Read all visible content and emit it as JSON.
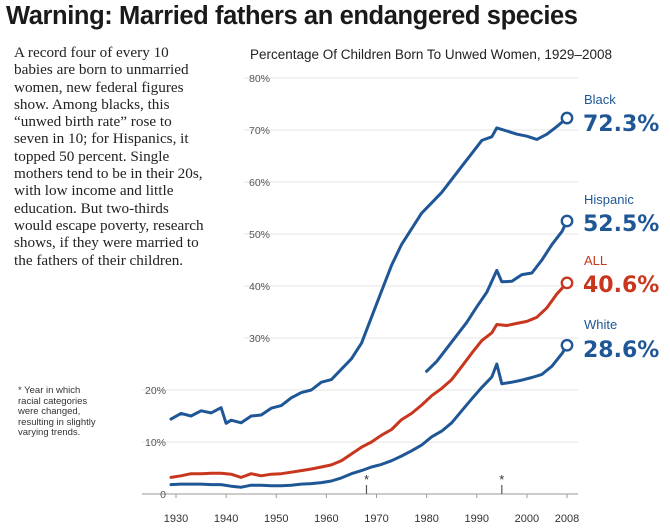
{
  "headline": "Warning: Married fathers an endangered species",
  "body_text": "A record four of every 10 babies are born to unmarried women, new federal figures show. Among blacks, this “unwed birth rate” rose to seven in 10; for Hispanics, it topped 50 percent. Single mothers tend to be in their 20s, with low income and little education. But two-thirds would escape poverty, research shows, if they were married to the fathers of their children.",
  "footnote": "* Year in which racial categories were changed, resulting in slightly varying trends.",
  "colors": {
    "black": "#1f5796",
    "hispanic": "#1f5796",
    "all": "#c8361e",
    "white": "#1f5796"
  },
  "chart_data": {
    "type": "line",
    "title": "Percentage Of Children Born To Unwed Women, 1929–2008",
    "xlabel": "",
    "ylabel": "",
    "xlim": [
      1929,
      2008
    ],
    "ylim": [
      0,
      80
    ],
    "x_ticks": [
      "1930",
      "1940",
      "1950",
      "1960",
      "1970",
      "1980",
      "1990",
      "2000",
      "2008"
    ],
    "y_ticks_left": [
      "20%",
      "10%",
      "0"
    ],
    "y_ticks_top": [
      "80%",
      "70%",
      "60%",
      "50%",
      "40%",
      "30%"
    ],
    "asterisks": [
      {
        "year": 1968,
        "symbol": "*"
      },
      {
        "year": 1995,
        "symbol": "*"
      }
    ],
    "series": [
      {
        "name": "Black",
        "value_label": "72.3%",
        "color": "#1f5796",
        "points": [
          [
            1929,
            14.4
          ],
          [
            1931,
            15.5
          ],
          [
            1933,
            15.0
          ],
          [
            1935,
            16.0
          ],
          [
            1937,
            15.6
          ],
          [
            1939,
            16.6
          ],
          [
            1940,
            13.6
          ],
          [
            1941,
            14.2
          ],
          [
            1943,
            13.7
          ],
          [
            1945,
            15.0
          ],
          [
            1947,
            15.2
          ],
          [
            1949,
            16.5
          ],
          [
            1951,
            17.0
          ],
          [
            1953,
            18.5
          ],
          [
            1955,
            19.5
          ],
          [
            1957,
            20.0
          ],
          [
            1959,
            21.5
          ],
          [
            1961,
            22.0
          ],
          [
            1963,
            24.0
          ],
          [
            1965,
            26.0
          ],
          [
            1967,
            29.0
          ],
          [
            1969,
            34.0
          ],
          [
            1971,
            39.0
          ],
          [
            1973,
            44.0
          ],
          [
            1975,
            48.0
          ],
          [
            1977,
            51.0
          ],
          [
            1979,
            54.0
          ],
          [
            1981,
            56.0
          ],
          [
            1983,
            58.0
          ],
          [
            1985,
            60.5
          ],
          [
            1987,
            63.0
          ],
          [
            1989,
            65.5
          ],
          [
            1991,
            68.0
          ],
          [
            1993,
            68.7
          ],
          [
            1994,
            70.4
          ],
          [
            1996,
            69.8
          ],
          [
            1998,
            69.2
          ],
          [
            2000,
            68.8
          ],
          [
            2002,
            68.2
          ],
          [
            2004,
            69.2
          ],
          [
            2006,
            70.7
          ],
          [
            2008,
            72.3
          ]
        ]
      },
      {
        "name": "Hispanic",
        "value_label": "52.5%",
        "color": "#1f5796",
        "points": [
          [
            1980,
            23.6
          ],
          [
            1982,
            25.5
          ],
          [
            1984,
            28.0
          ],
          [
            1986,
            30.5
          ],
          [
            1988,
            33.0
          ],
          [
            1990,
            36.0
          ],
          [
            1992,
            38.8
          ],
          [
            1994,
            43.0
          ],
          [
            1995,
            40.8
          ],
          [
            1997,
            40.9
          ],
          [
            1999,
            42.2
          ],
          [
            2001,
            42.5
          ],
          [
            2003,
            45.0
          ],
          [
            2005,
            48.0
          ],
          [
            2007,
            50.5
          ],
          [
            2008,
            52.5
          ]
        ]
      },
      {
        "name": "ALL",
        "value_label": "40.6%",
        "color": "#c8361e",
        "points": [
          [
            1929,
            3.2
          ],
          [
            1931,
            3.5
          ],
          [
            1933,
            3.9
          ],
          [
            1935,
            3.9
          ],
          [
            1937,
            4.0
          ],
          [
            1939,
            4.0
          ],
          [
            1941,
            3.8
          ],
          [
            1943,
            3.2
          ],
          [
            1945,
            3.9
          ],
          [
            1947,
            3.5
          ],
          [
            1949,
            3.8
          ],
          [
            1951,
            3.9
          ],
          [
            1953,
            4.2
          ],
          [
            1955,
            4.5
          ],
          [
            1957,
            4.8
          ],
          [
            1959,
            5.2
          ],
          [
            1961,
            5.6
          ],
          [
            1963,
            6.4
          ],
          [
            1965,
            7.7
          ],
          [
            1967,
            9.0
          ],
          [
            1969,
            10.0
          ],
          [
            1971,
            11.3
          ],
          [
            1973,
            12.4
          ],
          [
            1975,
            14.3
          ],
          [
            1977,
            15.5
          ],
          [
            1979,
            17.1
          ],
          [
            1981,
            18.9
          ],
          [
            1983,
            20.3
          ],
          [
            1985,
            22.0
          ],
          [
            1987,
            24.5
          ],
          [
            1989,
            27.1
          ],
          [
            1991,
            29.5
          ],
          [
            1993,
            31.0
          ],
          [
            1994,
            32.6
          ],
          [
            1996,
            32.4
          ],
          [
            1998,
            32.8
          ],
          [
            2000,
            33.2
          ],
          [
            2002,
            34.0
          ],
          [
            2004,
            35.8
          ],
          [
            2006,
            38.5
          ],
          [
            2008,
            40.6
          ]
        ]
      },
      {
        "name": "White",
        "value_label": "28.6%",
        "color": "#1f5796",
        "points": [
          [
            1929,
            1.8
          ],
          [
            1931,
            1.9
          ],
          [
            1933,
            1.9
          ],
          [
            1935,
            1.9
          ],
          [
            1937,
            1.8
          ],
          [
            1939,
            1.8
          ],
          [
            1941,
            1.5
          ],
          [
            1943,
            1.3
          ],
          [
            1945,
            1.7
          ],
          [
            1947,
            1.7
          ],
          [
            1949,
            1.6
          ],
          [
            1951,
            1.6
          ],
          [
            1953,
            1.7
          ],
          [
            1955,
            1.9
          ],
          [
            1957,
            2.0
          ],
          [
            1959,
            2.2
          ],
          [
            1961,
            2.5
          ],
          [
            1963,
            3.1
          ],
          [
            1965,
            3.9
          ],
          [
            1967,
            4.5
          ],
          [
            1969,
            5.2
          ],
          [
            1971,
            5.7
          ],
          [
            1973,
            6.4
          ],
          [
            1975,
            7.3
          ],
          [
            1977,
            8.3
          ],
          [
            1979,
            9.4
          ],
          [
            1981,
            11.0
          ],
          [
            1983,
            12.1
          ],
          [
            1985,
            13.7
          ],
          [
            1987,
            16.0
          ],
          [
            1989,
            18.3
          ],
          [
            1991,
            20.5
          ],
          [
            1993,
            22.5
          ],
          [
            1994,
            25.0
          ],
          [
            1995,
            21.2
          ],
          [
            1997,
            21.5
          ],
          [
            1999,
            21.9
          ],
          [
            2001,
            22.4
          ],
          [
            2003,
            23.0
          ],
          [
            2005,
            24.6
          ],
          [
            2007,
            27.0
          ],
          [
            2008,
            28.6
          ]
        ]
      }
    ]
  }
}
